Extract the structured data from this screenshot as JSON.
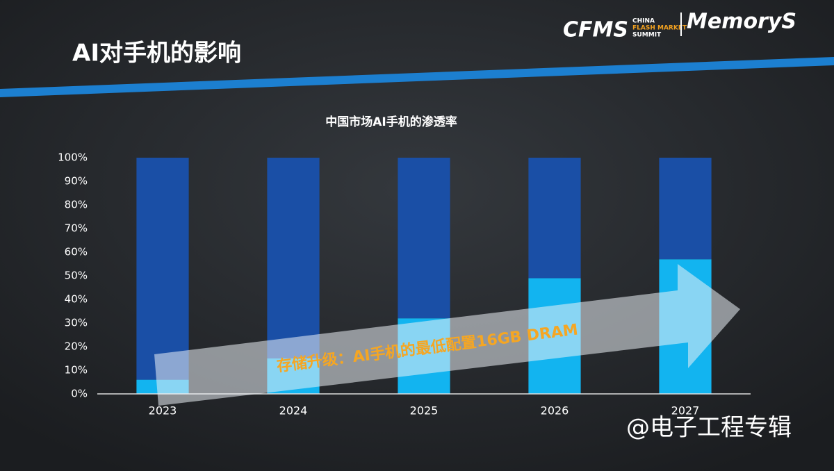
{
  "header": {
    "title": "AI对手机的影响",
    "logo_left": "CFMS",
    "logo_sub": [
      "CHINA",
      "FLASH MARKET",
      "SUMMIT"
    ],
    "logo_right": "MemoryS"
  },
  "chart_data": {
    "type": "stacked-bar",
    "title": "中国市场AI手机的渗透率",
    "categories": [
      "2023",
      "2024",
      "2025",
      "2026",
      "2027"
    ],
    "series": [
      {
        "color": "#12b4f0",
        "values": [
          6,
          15,
          32,
          49,
          57
        ]
      },
      {
        "color": "#1a4fa6",
        "values": [
          94,
          85,
          68,
          51,
          43
        ]
      }
    ],
    "ylim": [
      0,
      100
    ],
    "yticks": [
      {
        "value": 0,
        "label": "0%"
      },
      {
        "value": 10,
        "label": "10%"
      },
      {
        "value": 20,
        "label": "20%"
      },
      {
        "value": 30,
        "label": "30%"
      },
      {
        "value": 40,
        "label": "40%"
      },
      {
        "value": 50,
        "label": "50%"
      },
      {
        "value": 60,
        "label": "60%"
      },
      {
        "value": 70,
        "label": "70%"
      },
      {
        "value": 80,
        "label": "80%"
      },
      {
        "value": 90,
        "label": "90%"
      },
      {
        "value": 100,
        "label": "100%"
      }
    ],
    "annotation": "存储升级：AI手机的最低配置16GB DRAM"
  },
  "watermark": "@电子工程专辑"
}
